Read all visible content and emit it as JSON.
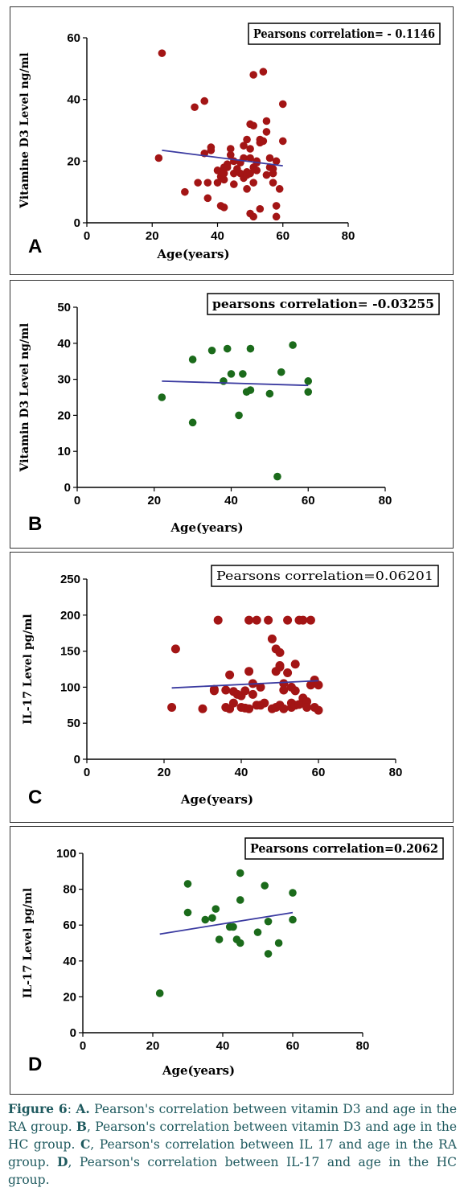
{
  "colors": {
    "red": "#a31515",
    "green": "#1b6b1b",
    "line": "#3a3aa0",
    "caption": "#1f5a5f"
  },
  "chart_data": [
    {
      "type": "scatter",
      "panel_letter": "A",
      "annotation": "Pearsons correlation= - 0.1146",
      "xlabel": "Age(years)",
      "ylabel": "Vitamine D3 Level ng/ml",
      "xlim": [
        0,
        80
      ],
      "ylim": [
        0,
        60
      ],
      "xticks": [
        0,
        20,
        40,
        60,
        80
      ],
      "yticks": [
        0,
        20,
        40,
        60
      ],
      "marker_color": "#a31515",
      "trend": {
        "x": [
          23,
          60
        ],
        "y": [
          23.5,
          18.5
        ]
      },
      "points": {
        "x": [
          22,
          23,
          30,
          33,
          34,
          36,
          36,
          37,
          37,
          38,
          38,
          40,
          40,
          41,
          41,
          41,
          42,
          42,
          42,
          42,
          43,
          43,
          44,
          44,
          45,
          45,
          45,
          46,
          47,
          47,
          48,
          48,
          48,
          49,
          49,
          49,
          49,
          50,
          50,
          50,
          50,
          50,
          51,
          51,
          51,
          51,
          51,
          52,
          52,
          52,
          53,
          53,
          53,
          54,
          54,
          55,
          55,
          55,
          56,
          56,
          57,
          57,
          57,
          58,
          58,
          58,
          59,
          60,
          60
        ],
        "y": [
          21,
          55,
          10,
          37.5,
          13,
          22.5,
          39.5,
          13,
          8,
          23.5,
          24.5,
          17,
          13,
          5.5,
          15,
          16.5,
          18,
          14,
          5,
          16,
          19,
          18,
          22,
          24,
          16,
          12.5,
          20,
          17.5,
          16,
          19.5,
          21,
          25,
          14.5,
          27,
          16.5,
          11,
          15.5,
          32,
          24,
          3,
          21,
          16,
          48,
          31.5,
          18,
          2,
          13,
          20,
          17,
          19.5,
          4.5,
          27,
          26,
          26.5,
          49,
          29.5,
          15.5,
          33,
          18,
          21,
          16,
          17.5,
          13,
          5.5,
          20,
          2,
          11,
          38.5,
          26.5
        ]
      }
    },
    {
      "type": "scatter",
      "panel_letter": "B",
      "annotation": "pearsons correlation= -0.03255",
      "xlabel": "Age(years)",
      "ylabel": "Vitamin D3 Level ng/ml",
      "xlim": [
        0,
        80
      ],
      "ylim": [
        0,
        50
      ],
      "xticks": [
        0,
        20,
        40,
        60,
        80
      ],
      "yticks": [
        0,
        10,
        20,
        30,
        40,
        50
      ],
      "marker_color": "#1b6b1b",
      "trend": {
        "x": [
          22,
          60
        ],
        "y": [
          29.5,
          28.3
        ]
      },
      "points": {
        "x": [
          22,
          30,
          30,
          35,
          38,
          39,
          40,
          42,
          43,
          44,
          45,
          45,
          50,
          52,
          53,
          56,
          60,
          60
        ],
        "y": [
          25,
          35.5,
          18,
          38,
          29.5,
          38.5,
          31.5,
          20,
          31.5,
          26.5,
          27,
          38.5,
          26,
          3,
          32,
          39.5,
          29.5,
          26.5
        ]
      }
    },
    {
      "type": "scatter",
      "panel_letter": "C",
      "annotation": "Pearsons correlation=0.06201",
      "xlabel": "Age(years)",
      "ylabel": "IL-17 Level pg/ml",
      "xlim": [
        0,
        80
      ],
      "ylim": [
        0,
        250
      ],
      "xticks": [
        0,
        20,
        40,
        60,
        80
      ],
      "yticks": [
        0,
        50,
        100,
        150,
        200,
        250
      ],
      "marker_color": "#a31515",
      "trend": {
        "x": [
          22,
          60
        ],
        "y": [
          99,
          109
        ]
      },
      "points": {
        "x": [
          22,
          23,
          30,
          33,
          33,
          34,
          36,
          36,
          37,
          37,
          38,
          38,
          39,
          40,
          40,
          41,
          41,
          42,
          42,
          42,
          43,
          43,
          44,
          44,
          45,
          45,
          46,
          47,
          48,
          48,
          49,
          49,
          49,
          50,
          50,
          50,
          50,
          51,
          51,
          51,
          52,
          52,
          53,
          53,
          53,
          54,
          54,
          54,
          55,
          55,
          56,
          56,
          57,
          57,
          58,
          58,
          59,
          59,
          60,
          60
        ],
        "y": [
          72,
          153,
          70,
          97,
          95,
          193,
          96,
          72,
          117,
          70,
          94,
          78,
          90,
          88,
          72,
          95,
          71,
          193,
          122,
          70,
          105,
          90,
          193,
          75,
          100,
          75,
          78,
          193,
          70,
          167,
          153,
          122,
          72,
          148,
          130,
          128,
          75,
          70,
          105,
          96,
          193,
          120,
          100,
          72,
          78,
          95,
          132,
          75,
          76,
          193,
          85,
          193,
          80,
          72,
          193,
          103,
          110,
          72,
          103,
          68
        ]
      }
    },
    {
      "type": "scatter",
      "panel_letter": "D",
      "annotation": "Pearsons correlation=0.2062",
      "xlabel": "Age(years)",
      "ylabel": "IL-17 Level pg/ml",
      "xlim": [
        0,
        80
      ],
      "ylim": [
        0,
        100
      ],
      "xticks": [
        0,
        20,
        40,
        60,
        80
      ],
      "yticks": [
        0,
        20,
        40,
        60,
        80,
        100
      ],
      "marker_color": "#1b6b1b",
      "trend": {
        "x": [
          22,
          60
        ],
        "y": [
          55,
          67
        ]
      },
      "points": {
        "x": [
          22,
          30,
          30,
          35,
          37,
          38,
          39,
          42,
          43,
          44,
          45,
          45,
          45,
          50,
          52,
          53,
          53,
          56,
          60,
          60
        ],
        "y": [
          22,
          83,
          67,
          63,
          64,
          69,
          52,
          59,
          59,
          52,
          50,
          89,
          74,
          56,
          82,
          62,
          44,
          50,
          78,
          63
        ]
      }
    }
  ],
  "caption": {
    "figure_label": "Figure 6",
    "text": [
      {
        "letter": "A.",
        "sep": "",
        "desc": " Pearson's correlation between vitamin D3 and age in the RA group."
      },
      {
        "letter": "B",
        "sep": ",",
        "desc": " Pearson's correlation between vitamin D3 and age in the HC group."
      },
      {
        "letter": "C",
        "sep": ",",
        "desc": " Pearson's correlation between IL 17 and age in the RA group."
      },
      {
        "letter": "D",
        "sep": ",",
        "desc": " Pearson's correlation between IL-17 and age in the HC group."
      }
    ]
  }
}
